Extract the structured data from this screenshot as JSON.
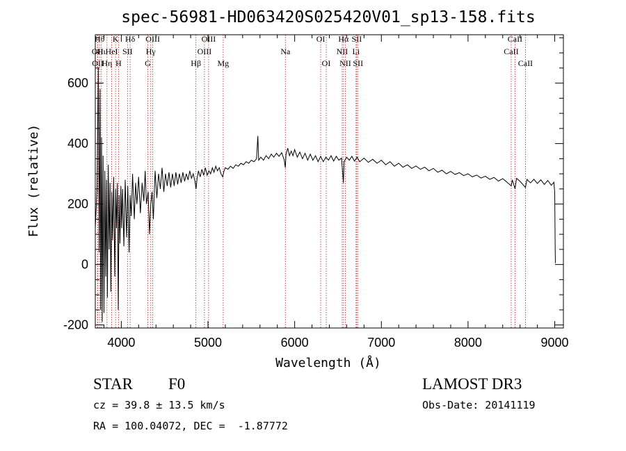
{
  "chart_data": {
    "type": "line",
    "title": "spec-56981-HD063420S025420V01_sp13-158.fits",
    "xlabel": "Wavelength (Å)",
    "ylabel": "Flux (relative)",
    "xlim": [
      3700,
      9100
    ],
    "ylim": [
      -210,
      760
    ],
    "xticks": [
      4000,
      5000,
      6000,
      7000,
      8000,
      9000
    ],
    "xminor_step": 200,
    "yticks": [
      -200,
      0,
      200,
      400,
      600
    ],
    "yminor_step": 50,
    "series": [
      {
        "name": "flux",
        "points": [
          [
            3700,
            120
          ],
          [
            3720,
            250
          ],
          [
            3735,
            650
          ],
          [
            3745,
            40
          ],
          [
            3755,
            580
          ],
          [
            3762,
            -150
          ],
          [
            3772,
            420
          ],
          [
            3780,
            -190
          ],
          [
            3790,
            360
          ],
          [
            3800,
            -160
          ],
          [
            3810,
            310
          ],
          [
            3820,
            -40
          ],
          [
            3830,
            280
          ],
          [
            3840,
            -110
          ],
          [
            3850,
            330
          ],
          [
            3860,
            50
          ],
          [
            3870,
            270
          ],
          [
            3880,
            -90
          ],
          [
            3890,
            240
          ],
          [
            3900,
            80
          ],
          [
            3912,
            290
          ],
          [
            3925,
            -40
          ],
          [
            3935,
            250
          ],
          [
            3945,
            120
          ],
          [
            3955,
            270
          ],
          [
            3965,
            -150
          ],
          [
            3975,
            230
          ],
          [
            3985,
            70
          ],
          [
            3995,
            260
          ],
          [
            4005,
            120
          ],
          [
            4015,
            250
          ],
          [
            4030,
            60
          ],
          [
            4045,
            280
          ],
          [
            4060,
            90
          ],
          [
            4075,
            260
          ],
          [
            4090,
            40
          ],
          [
            4102,
            230
          ],
          [
            4115,
            160
          ],
          [
            4130,
            300
          ],
          [
            4150,
            150
          ],
          [
            4165,
            270
          ],
          [
            4180,
            200
          ],
          [
            4200,
            290
          ],
          [
            4220,
            170
          ],
          [
            4240,
            270
          ],
          [
            4260,
            210
          ],
          [
            4275,
            310
          ],
          [
            4290,
            200
          ],
          [
            4310,
            240
          ],
          [
            4325,
            100
          ],
          [
            4340,
            200
          ],
          [
            4355,
            240
          ],
          [
            4370,
            150
          ],
          [
            4390,
            310
          ],
          [
            4410,
            220
          ],
          [
            4430,
            300
          ],
          [
            4450,
            250
          ],
          [
            4470,
            320
          ],
          [
            4490,
            240
          ],
          [
            4510,
            300
          ],
          [
            4530,
            260
          ],
          [
            4550,
            305
          ],
          [
            4570,
            255
          ],
          [
            4590,
            300
          ],
          [
            4610,
            260
          ],
          [
            4630,
            305
          ],
          [
            4650,
            265
          ],
          [
            4670,
            300
          ],
          [
            4690,
            270
          ],
          [
            4710,
            305
          ],
          [
            4730,
            275
          ],
          [
            4750,
            300
          ],
          [
            4770,
            280
          ],
          [
            4790,
            310
          ],
          [
            4810,
            285
          ],
          [
            4830,
            300
          ],
          [
            4850,
            275
          ],
          [
            4862,
            250
          ],
          [
            4875,
            285
          ],
          [
            4890,
            310
          ],
          [
            4910,
            290
          ],
          [
            4930,
            315
          ],
          [
            4950,
            295
          ],
          [
            4970,
            320
          ],
          [
            4990,
            295
          ],
          [
            5010,
            310
          ],
          [
            5030,
            300
          ],
          [
            5050,
            320
          ],
          [
            5070,
            305
          ],
          [
            5090,
            325
          ],
          [
            5110,
            310
          ],
          [
            5130,
            320
          ],
          [
            5150,
            300
          ],
          [
            5170,
            290
          ],
          [
            5185,
            310
          ],
          [
            5200,
            320
          ],
          [
            5230,
            315
          ],
          [
            5260,
            325
          ],
          [
            5290,
            318
          ],
          [
            5320,
            330
          ],
          [
            5350,
            325
          ],
          [
            5380,
            335
          ],
          [
            5410,
            330
          ],
          [
            5440,
            340
          ],
          [
            5470,
            335
          ],
          [
            5500,
            345
          ],
          [
            5530,
            340
          ],
          [
            5560,
            350
          ],
          [
            5575,
            425
          ],
          [
            5585,
            345
          ],
          [
            5610,
            355
          ],
          [
            5640,
            345
          ],
          [
            5670,
            360
          ],
          [
            5700,
            350
          ],
          [
            5730,
            365
          ],
          [
            5760,
            355
          ],
          [
            5790,
            368
          ],
          [
            5820,
            358
          ],
          [
            5850,
            370
          ],
          [
            5880,
            345
          ],
          [
            5892,
            320
          ],
          [
            5900,
            365
          ],
          [
            5920,
            385
          ],
          [
            5940,
            360
          ],
          [
            5960,
            375
          ],
          [
            5980,
            360
          ],
          [
            6000,
            380
          ],
          [
            6030,
            355
          ],
          [
            6060,
            372
          ],
          [
            6090,
            350
          ],
          [
            6120,
            368
          ],
          [
            6150,
            345
          ],
          [
            6180,
            365
          ],
          [
            6210,
            345
          ],
          [
            6240,
            360
          ],
          [
            6270,
            340
          ],
          [
            6300,
            358
          ],
          [
            6330,
            340
          ],
          [
            6360,
            355
          ],
          [
            6390,
            345
          ],
          [
            6420,
            360
          ],
          [
            6450,
            342
          ],
          [
            6480,
            358
          ],
          [
            6510,
            345
          ],
          [
            6540,
            352
          ],
          [
            6555,
            300
          ],
          [
            6562,
            270
          ],
          [
            6570,
            340
          ],
          [
            6600,
            355
          ],
          [
            6630,
            345
          ],
          [
            6660,
            358
          ],
          [
            6690,
            342
          ],
          [
            6720,
            355
          ],
          [
            6750,
            340
          ],
          [
            6800,
            352
          ],
          [
            6850,
            338
          ],
          [
            6900,
            348
          ],
          [
            6950,
            335
          ],
          [
            7000,
            345
          ],
          [
            7050,
            330
          ],
          [
            7100,
            340
          ],
          [
            7150,
            325
          ],
          [
            7200,
            335
          ],
          [
            7250,
            322
          ],
          [
            7300,
            330
          ],
          [
            7350,
            318
          ],
          [
            7400,
            326
          ],
          [
            7450,
            315
          ],
          [
            7500,
            322
          ],
          [
            7550,
            310
          ],
          [
            7600,
            318
          ],
          [
            7650,
            305
          ],
          [
            7700,
            312
          ],
          [
            7750,
            300
          ],
          [
            7800,
            308
          ],
          [
            7850,
            298
          ],
          [
            7900,
            304
          ],
          [
            7950,
            294
          ],
          [
            8000,
            300
          ],
          [
            8050,
            290
          ],
          [
            8100,
            296
          ],
          [
            8150,
            286
          ],
          [
            8200,
            292
          ],
          [
            8250,
            282
          ],
          [
            8300,
            288
          ],
          [
            8350,
            276
          ],
          [
            8400,
            284
          ],
          [
            8450,
            272
          ],
          [
            8498,
            260
          ],
          [
            8510,
            280
          ],
          [
            8542,
            250
          ],
          [
            8560,
            285
          ],
          [
            8600,
            275
          ],
          [
            8662,
            255
          ],
          [
            8680,
            282
          ],
          [
            8720,
            270
          ],
          [
            8760,
            282
          ],
          [
            8800,
            268
          ],
          [
            8840,
            280
          ],
          [
            8880,
            265
          ],
          [
            8920,
            278
          ],
          [
            8960,
            262
          ],
          [
            8990,
            272
          ],
          [
            9000,
            240
          ],
          [
            9005,
            50
          ],
          [
            9008,
            5
          ]
        ]
      }
    ],
    "lines": [
      {
        "w": 3726,
        "label": "OII",
        "row": 1
      },
      {
        "w": 3729,
        "label": "OII",
        "row": 2
      },
      {
        "w": 3750,
        "label": "Hθ",
        "row": 0
      },
      {
        "w": 3771,
        "label": "Hι",
        "row": 1
      },
      {
        "w": 3835,
        "label": "Hη",
        "row": 2
      },
      {
        "w": 3889,
        "label": "HeI",
        "row": 1
      },
      {
        "w": 3934,
        "label": "K",
        "row": 0
      },
      {
        "w": 3968,
        "label": "H",
        "row": 2
      },
      {
        "w": 4072,
        "label": "SII",
        "row": 1
      },
      {
        "w": 4102,
        "label": "Hδ",
        "row": 0
      },
      {
        "w": 4305,
        "label": "G",
        "row": 2
      },
      {
        "w": 4340,
        "label": "Hγ",
        "row": 1
      },
      {
        "w": 4363,
        "label": "OIII",
        "row": 0
      },
      {
        "w": 4861,
        "label": "Hβ",
        "row": 2
      },
      {
        "w": 4959,
        "label": "OIII",
        "row": 1
      },
      {
        "w": 5007,
        "label": "OIII",
        "row": 0
      },
      {
        "w": 5175,
        "label": "Mg",
        "row": 2
      },
      {
        "w": 5893,
        "label": "Na",
        "row": 1
      },
      {
        "w": 6300,
        "label": "OI",
        "row": 0
      },
      {
        "w": 6364,
        "label": "OI",
        "row": 2
      },
      {
        "w": 6548,
        "label": "NII",
        "row": 1
      },
      {
        "w": 6563,
        "label": "Hα",
        "row": 0
      },
      {
        "w": 6584,
        "label": "NII",
        "row": 2
      },
      {
        "w": 6708,
        "label": "Li",
        "row": 1
      },
      {
        "w": 6716,
        "label": "SII",
        "row": 0
      },
      {
        "w": 6731,
        "label": "SII",
        "row": 2
      },
      {
        "w": 8498,
        "label": "CaII",
        "row": 1
      },
      {
        "w": 8542,
        "label": "CaII",
        "row": 0
      },
      {
        "w": 8662,
        "label": "CaII",
        "row": 2
      }
    ]
  },
  "info": {
    "object_class": "STAR",
    "subclass": "F0",
    "survey": "LAMOST DR3",
    "cz": "cz = 39.8 ± 13.5 km/s",
    "obs_date": "Obs-Date: 20141119",
    "coords": "RA = 100.04072, DEC =  -1.87772"
  },
  "colors": {
    "spectrum": "#000000",
    "line_markers": "#b22222",
    "background": "#ffffff"
  }
}
